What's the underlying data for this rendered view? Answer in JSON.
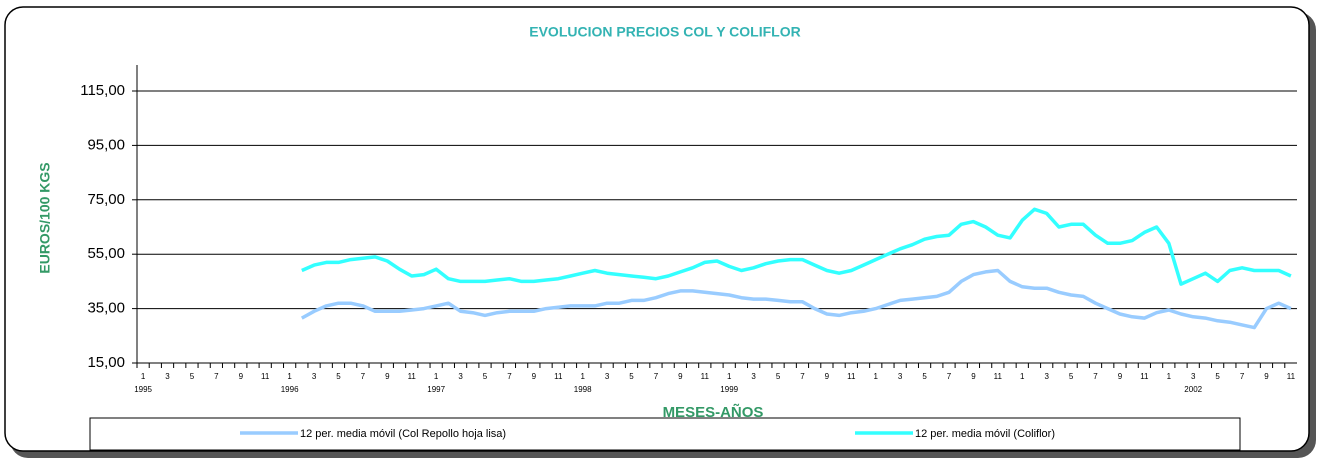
{
  "chart_data": {
    "type": "line",
    "title": "EVOLUCION PRECIOS COL Y COLIFLOR",
    "ylabel": "EUROS/100 KGS",
    "xlabel": "MESES-AÑOS",
    "categories": [
      "1",
      null,
      "3",
      null,
      "5",
      null,
      "7",
      null,
      "9",
      null,
      "11",
      null,
      "1",
      null,
      "3",
      null,
      "5",
      null,
      "7",
      null,
      "9",
      null,
      "11",
      null,
      "1",
      null,
      "3",
      null,
      "5",
      null,
      "7",
      null,
      "9",
      null,
      "11",
      null,
      "1",
      null,
      "3",
      null,
      "5",
      null,
      "7",
      null,
      "9",
      null,
      "11",
      null,
      "1",
      null,
      "3",
      null,
      "5",
      null,
      "7",
      null,
      "9",
      null,
      "11",
      null,
      "1",
      null,
      "3",
      null,
      "5",
      null,
      "7",
      null,
      "9",
      null,
      "11",
      null,
      "1",
      null,
      "3",
      null,
      "5",
      null,
      "7",
      null,
      "9",
      null,
      "11",
      null,
      "1",
      null,
      "3",
      null,
      "5",
      null,
      "7",
      null,
      "9",
      null,
      "11"
    ],
    "years": [
      "1995",
      null,
      null,
      null,
      null,
      null,
      null,
      null,
      null,
      null,
      null,
      null,
      "1996",
      null,
      null,
      null,
      null,
      null,
      null,
      null,
      null,
      null,
      null,
      null,
      "1997",
      null,
      null,
      null,
      null,
      null,
      null,
      null,
      null,
      null,
      null,
      null,
      "1998",
      null,
      null,
      null,
      null,
      null,
      null,
      null,
      null,
      null,
      null,
      null,
      "1999",
      null,
      null,
      null,
      null,
      null,
      null,
      null,
      null,
      null,
      null,
      null,
      null,
      null,
      null,
      null,
      null,
      null,
      null,
      null,
      null,
      null,
      null,
      null,
      null,
      null,
      null,
      null,
      null,
      null,
      null,
      null,
      null,
      null,
      null,
      null,
      null,
      null,
      "2002",
      null,
      null,
      null,
      null,
      null,
      null,
      null,
      null,
      null,
      null
    ],
    "series": [
      {
        "name": "12 per. media móvil (Col Repollo hoja lisa)",
        "color": "#99ccff",
        "values": [
          null,
          null,
          null,
          null,
          null,
          null,
          null,
          null,
          null,
          null,
          null,
          null,
          null,
          31.5,
          34,
          36,
          37,
          37,
          36,
          34,
          34,
          34,
          34.5,
          35,
          36,
          37,
          34,
          33.5,
          32.5,
          33.5,
          34,
          34,
          34,
          35,
          35.5,
          36,
          36,
          36,
          37,
          37,
          38,
          38,
          39,
          40.5,
          41.5,
          41.5,
          41,
          40.5,
          40,
          39,
          38.5,
          38.5,
          38,
          37.5,
          37.5,
          35,
          33,
          32.5,
          33.5,
          34,
          35,
          36.5,
          38,
          38.5,
          39,
          39.5,
          41,
          45,
          47.5,
          48.5,
          49,
          45,
          43,
          42.5,
          42.5,
          41,
          40,
          39.5,
          37,
          35,
          33,
          32,
          31.5,
          33.5,
          34.5,
          33,
          32,
          31.5,
          30.5,
          30,
          29,
          28,
          35,
          37,
          35
        ]
      },
      {
        "name": "12 per. media móvil (Coliflor)",
        "color": "#33ffff",
        "values": [
          null,
          null,
          null,
          null,
          null,
          null,
          null,
          null,
          null,
          null,
          null,
          null,
          null,
          49,
          51,
          52,
          52,
          53,
          53.5,
          54,
          52.5,
          49.5,
          47,
          47.5,
          49.5,
          46,
          45,
          45,
          45,
          45.5,
          46,
          45,
          45,
          45.5,
          46,
          47,
          48,
          49,
          48,
          47.5,
          47,
          46.5,
          46,
          47,
          48.5,
          50,
          52,
          52.5,
          50.5,
          49,
          50,
          51.5,
          52.5,
          53,
          53,
          51,
          49,
          48,
          49,
          51,
          53,
          55,
          57,
          58.5,
          60.5,
          61.5,
          62,
          66,
          67,
          65,
          62,
          61,
          67.5,
          71.5,
          70,
          65,
          66,
          66,
          62,
          59,
          59,
          60,
          63,
          65,
          59,
          44,
          46,
          48,
          45,
          49,
          50,
          49,
          49,
          49,
          47
        ]
      }
    ],
    "ylim": [
      15,
      125
    ],
    "yticks": [
      {
        "value": 15,
        "label": "15,00"
      },
      {
        "value": 35,
        "label": "35,00"
      },
      {
        "value": 55,
        "label": "55,00"
      },
      {
        "value": 75,
        "label": "75,00"
      },
      {
        "value": 95,
        "label": "95,00"
      },
      {
        "value": 115,
        "label": "115,00"
      }
    ],
    "grid": true
  }
}
